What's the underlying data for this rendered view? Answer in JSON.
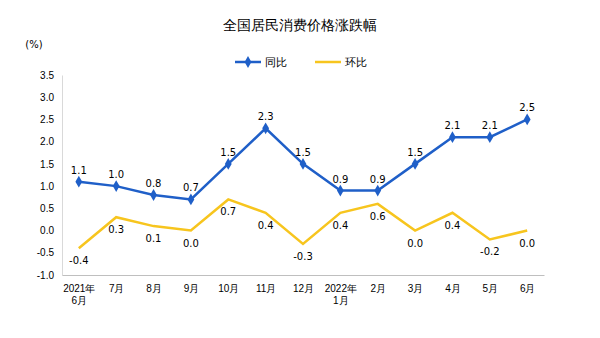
{
  "chart_data": {
    "type": "line",
    "title": "全国居民消费价格涨跌幅",
    "y_label": "(%)",
    "categories": [
      "2021年\n6月",
      "7月",
      "8月",
      "9月",
      "10月",
      "11月",
      "12月",
      "2022年\n1月",
      "2月",
      "3月",
      "4月",
      "5月",
      "6月"
    ],
    "series": [
      {
        "name": "同比",
        "color": "#1f5fc8",
        "marker": "diamond",
        "values": [
          1.1,
          1.0,
          0.8,
          0.7,
          1.5,
          2.3,
          1.5,
          0.9,
          0.9,
          1.5,
          2.1,
          2.1,
          2.5
        ],
        "value_labels": [
          "1.1",
          "1.0",
          "0.8",
          "0.7",
          "1.5",
          "2.3",
          "1.5",
          "0.9",
          "0.9",
          "1.5",
          "2.1",
          "2.1",
          "2.5"
        ]
      },
      {
        "name": "环比",
        "color": "#f7c51e",
        "marker": "none",
        "values": [
          -0.4,
          0.3,
          0.1,
          0.0,
          0.7,
          0.4,
          -0.3,
          0.4,
          0.6,
          0.0,
          0.4,
          -0.2,
          0.0
        ],
        "value_labels": [
          "-0.4",
          "0.3",
          "0.1",
          "0.0",
          "0.7",
          "0.4",
          "-0.3",
          "0.4",
          "0.6",
          "0.0",
          "0.4",
          "-0.2",
          "0.0"
        ]
      }
    ],
    "ylim": [
      -1.0,
      3.5
    ],
    "yticks": [
      {
        "value": -1.0,
        "label": "-1.0"
      },
      -0.5,
      {
        "value": 0,
        "label": "0.0"
      },
      0.5,
      {
        "value": 1,
        "label": "1.0"
      },
      1.5,
      {
        "value": 2,
        "label": "2.0"
      },
      2.5,
      {
        "value": 3,
        "label": "3.0"
      },
      3.5
    ],
    "grid": false,
    "legend": "top",
    "data_labels": true
  }
}
